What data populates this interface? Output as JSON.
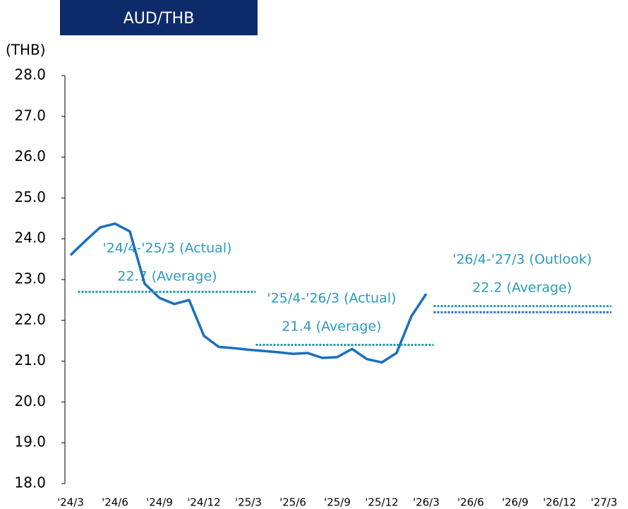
{
  "chart_data": {
    "type": "line",
    "title": "AUD/THB",
    "y_label": "(THB)",
    "categories": [
      "'24/3",
      null,
      null,
      "'24/6",
      null,
      null,
      "'24/9",
      null,
      null,
      "'24/12",
      null,
      null,
      "'25/3",
      null,
      null,
      "'25/6",
      null,
      null,
      "'25/9",
      null,
      null,
      "'25/12",
      null,
      null,
      "'26/3",
      null,
      null,
      "'26/6",
      null,
      null,
      "'26/9",
      null,
      null,
      "'26/12",
      null,
      null,
      "'27/3"
    ],
    "series": [
      {
        "color": "#1a6fbf",
        "style": "solid",
        "values": [
          23.6,
          23.95,
          24.28,
          24.37,
          24.18,
          22.9,
          22.55,
          22.4,
          22.5,
          21.62,
          21.35,
          21.32,
          21.28,
          21.25,
          21.22,
          21.18,
          21.2,
          21.08,
          21.1,
          21.3,
          21.05,
          20.97,
          21.2,
          22.1,
          22.65,
          null,
          null,
          null,
          null,
          null,
          null,
          null,
          null,
          null,
          null,
          null,
          null
        ]
      },
      {
        "color": "#1f97b0",
        "style": "dotted",
        "values": [
          null,
          22.7,
          22.7,
          22.7,
          22.7,
          22.7,
          22.7,
          22.7,
          22.7,
          22.7,
          22.7,
          22.7,
          22.7,
          null,
          null,
          null,
          null,
          null,
          null,
          null,
          null,
          null,
          null,
          null,
          null,
          null,
          null,
          null,
          null,
          null,
          null,
          null,
          null,
          null,
          null,
          null,
          null
        ]
      },
      {
        "color": "#1f97b0",
        "style": "dotted",
        "values": [
          null,
          null,
          null,
          null,
          null,
          null,
          null,
          null,
          null,
          null,
          null,
          null,
          null,
          21.4,
          21.4,
          21.4,
          21.4,
          21.4,
          21.4,
          21.4,
          21.4,
          21.4,
          21.4,
          21.4,
          21.4,
          null,
          null,
          null,
          null,
          null,
          null,
          null,
          null,
          null,
          null,
          null,
          null
        ]
      },
      {
        "color": "#1f97b0",
        "style": "dotted",
        "values": [
          null,
          null,
          null,
          null,
          null,
          null,
          null,
          null,
          null,
          null,
          null,
          null,
          null,
          null,
          null,
          null,
          null,
          null,
          null,
          null,
          null,
          null,
          null,
          null,
          null,
          22.35,
          22.35,
          22.35,
          22.35,
          22.35,
          22.35,
          22.35,
          22.35,
          22.35,
          22.35,
          22.35,
          22.35
        ]
      },
      {
        "color": "#1f6fbf",
        "style": "dotted",
        "values": [
          null,
          null,
          null,
          null,
          null,
          null,
          null,
          null,
          null,
          null,
          null,
          null,
          null,
          null,
          null,
          null,
          null,
          null,
          null,
          null,
          null,
          null,
          null,
          null,
          null,
          22.2,
          22.2,
          22.2,
          22.2,
          22.2,
          22.2,
          22.2,
          22.2,
          22.2,
          22.2,
          22.2,
          22.2
        ]
      }
    ],
    "ylim": [
      18,
      28
    ],
    "yticks": [
      {
        "value": 18,
        "label": "18.0"
      },
      {
        "value": 19,
        "label": "19.0"
      },
      {
        "value": 20,
        "label": "20.0"
      },
      {
        "value": 21,
        "label": "21.0"
      },
      {
        "value": 22,
        "label": "22.0"
      },
      {
        "value": 23,
        "label": "23.0"
      },
      {
        "value": 24,
        "label": "24.0"
      },
      {
        "value": 25,
        "label": "25.0"
      },
      {
        "value": 26,
        "label": "26.0"
      },
      {
        "value": 27,
        "label": "27.0"
      },
      {
        "value": 28,
        "label": "28.0"
      }
    ],
    "annotations": [
      "'24/4-'25/3 (Actual)",
      "22.7 (Average)",
      "'25/4-'26/3 (Actual)",
      "21.4 (Average)",
      "'26/4-'27/3 (Outlook)",
      "22.2 (Average)"
    ]
  }
}
